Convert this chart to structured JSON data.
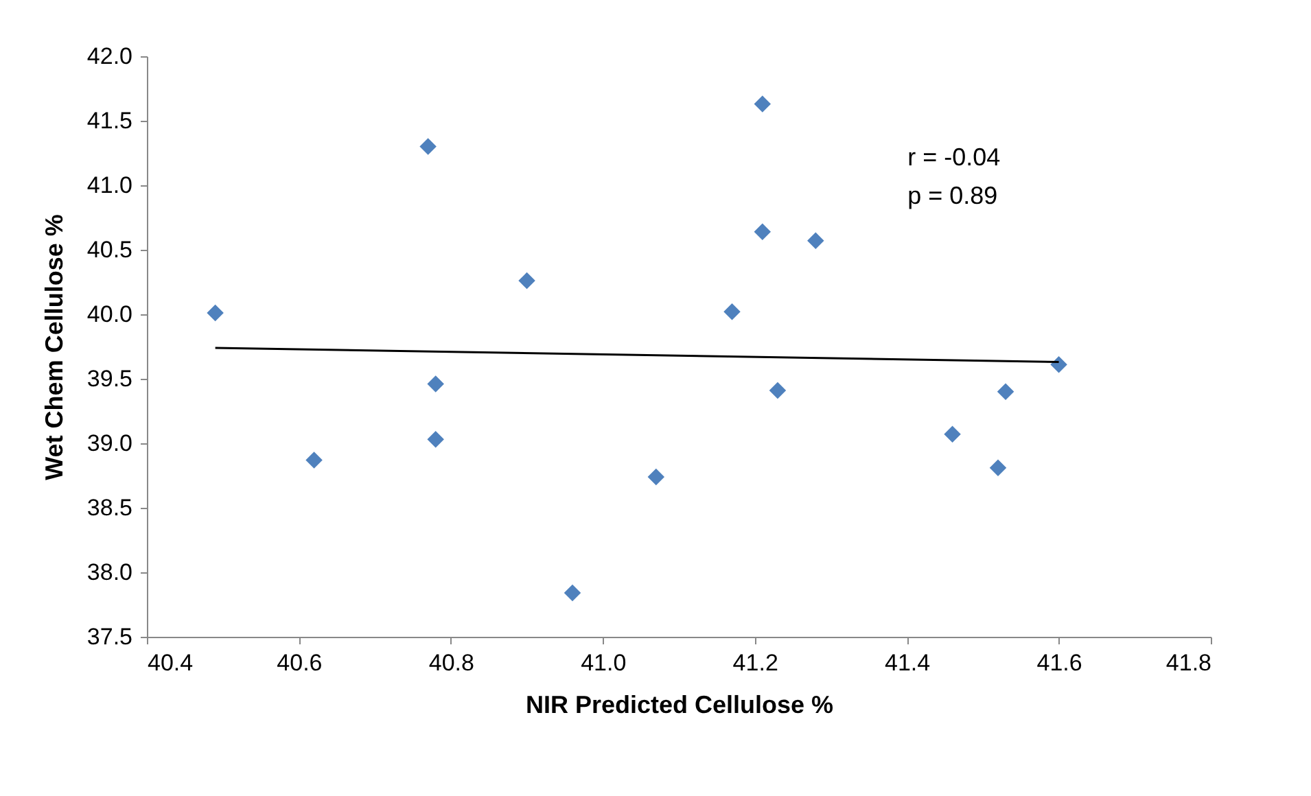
{
  "chart_data": {
    "type": "scatter",
    "xlabel": "NIR Predicted Cellulose %",
    "ylabel": "Wet Chem Cellulose %",
    "annotations": [
      "r = -0.04",
      "p = 0.89"
    ],
    "series": [
      {
        "color": "#4f81bd",
        "marker": "diamond",
        "x": [
          40.49,
          40.62,
          40.77,
          40.78,
          40.78,
          40.9,
          40.96,
          41.07,
          41.17,
          41.21,
          41.21,
          41.23,
          41.28,
          41.46,
          41.52,
          41.53,
          41.6
        ],
        "values": [
          40.01,
          38.87,
          41.3,
          39.46,
          39.03,
          40.26,
          37.84,
          38.74,
          40.02,
          41.63,
          40.64,
          39.41,
          40.57,
          39.07,
          38.81,
          39.4,
          39.61
        ]
      },
      {
        "type": "line",
        "color": "#000000",
        "marker": "none",
        "x": [
          40.49,
          41.6
        ],
        "values": [
          39.74,
          39.63
        ]
      }
    ],
    "xlim": [
      40.4,
      41.8
    ],
    "xticks": [
      {
        "value": 40.4,
        "label": "40.4"
      },
      {
        "value": 40.6,
        "label": "40.6"
      },
      {
        "value": 40.8,
        "label": "40.8"
      },
      {
        "value": 41.0,
        "label": "41.0"
      },
      {
        "value": 41.2,
        "label": "41.2"
      },
      {
        "value": 41.4,
        "label": "41.4"
      },
      {
        "value": 41.6,
        "label": "41.6"
      },
      {
        "value": 41.8,
        "label": "41.8"
      }
    ],
    "ylim": [
      37.5,
      42.0
    ],
    "yticks": [
      {
        "value": 37.5,
        "label": "37.5"
      },
      {
        "value": 38.0,
        "label": "38.0"
      },
      {
        "value": 38.5,
        "label": "38.5"
      },
      {
        "value": 39.0,
        "label": "39.0"
      },
      {
        "value": 39.5,
        "label": "39.5"
      },
      {
        "value": 40.0,
        "label": "40.0"
      },
      {
        "value": 40.5,
        "label": "40.5"
      },
      {
        "value": 41.0,
        "label": "41.0"
      },
      {
        "value": 41.5,
        "label": "41.5"
      },
      {
        "value": 42.0,
        "label": "42.0"
      }
    ],
    "grid": false
  }
}
